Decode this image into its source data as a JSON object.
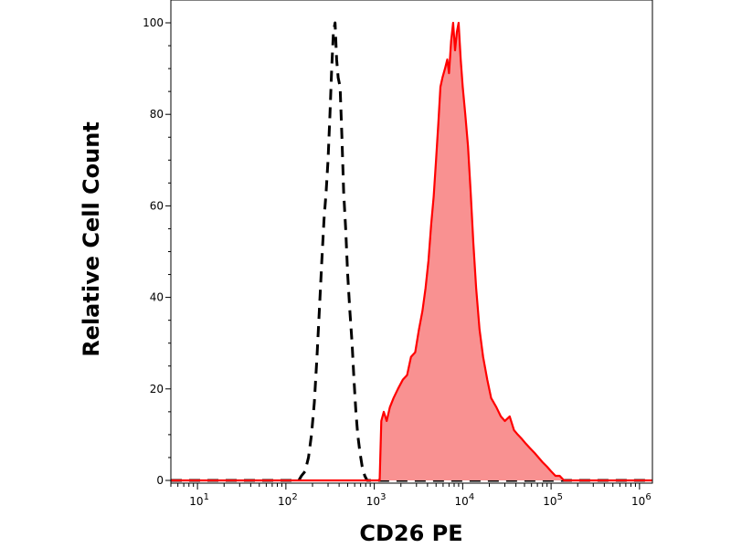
{
  "chart_data": {
    "type": "area",
    "title": "",
    "xlabel": "CD26 PE",
    "ylabel": "Relative Cell Count",
    "x_scale": "log",
    "xlim": [
      5,
      1400000
    ],
    "ylim": [
      0,
      100
    ],
    "grid": false,
    "legend": "none",
    "x_ticks": [
      {
        "value": 10,
        "base": "10",
        "exp": "1"
      },
      {
        "value": 100,
        "base": "10",
        "exp": "2"
      },
      {
        "value": 1000,
        "base": "10",
        "exp": "3"
      },
      {
        "value": 10000,
        "base": "10",
        "exp": "4"
      },
      {
        "value": 100000,
        "base": "10",
        "exp": "5"
      },
      {
        "value": 1000000,
        "base": "10",
        "exp": "6"
      }
    ],
    "y_ticks": [
      {
        "value": 0,
        "label": "0"
      },
      {
        "value": 20,
        "label": "20"
      },
      {
        "value": 40,
        "label": "40"
      },
      {
        "value": 60,
        "label": "60"
      },
      {
        "value": 80,
        "label": "80"
      },
      {
        "value": 100,
        "label": "100"
      }
    ],
    "series": [
      {
        "style": "dashed",
        "color": "#000000",
        "filled": false,
        "points": [
          [
            5,
            0
          ],
          [
            140,
            0
          ],
          [
            150,
            1
          ],
          [
            165,
            2
          ],
          [
            180,
            5
          ],
          [
            195,
            10
          ],
          [
            210,
            17
          ],
          [
            225,
            27
          ],
          [
            240,
            38
          ],
          [
            255,
            48
          ],
          [
            270,
            57
          ],
          [
            285,
            63
          ],
          [
            300,
            70
          ],
          [
            315,
            80
          ],
          [
            330,
            90
          ],
          [
            345,
            98
          ],
          [
            360,
            100
          ],
          [
            375,
            92
          ],
          [
            390,
            88
          ],
          [
            410,
            86
          ],
          [
            430,
            75
          ],
          [
            450,
            63
          ],
          [
            475,
            55
          ],
          [
            500,
            45
          ],
          [
            530,
            37
          ],
          [
            560,
            30
          ],
          [
            590,
            22
          ],
          [
            620,
            15
          ],
          [
            650,
            10
          ],
          [
            690,
            6
          ],
          [
            730,
            3
          ],
          [
            780,
            1
          ],
          [
            830,
            0
          ],
          [
            1400000,
            0
          ]
        ]
      },
      {
        "style": "solid",
        "color": "#ff0000",
        "fill": "#f99191",
        "filled": true,
        "points": [
          [
            5,
            0
          ],
          [
            1150,
            0
          ],
          [
            1200,
            13
          ],
          [
            1280,
            15
          ],
          [
            1380,
            13
          ],
          [
            1500,
            16
          ],
          [
            1650,
            18
          ],
          [
            1850,
            20
          ],
          [
            2100,
            22
          ],
          [
            2350,
            23
          ],
          [
            2600,
            27
          ],
          [
            2900,
            28
          ],
          [
            3200,
            33
          ],
          [
            3500,
            37
          ],
          [
            3800,
            42
          ],
          [
            4100,
            48
          ],
          [
            4400,
            56
          ],
          [
            4700,
            62
          ],
          [
            5000,
            70
          ],
          [
            5300,
            78
          ],
          [
            5600,
            86
          ],
          [
            5900,
            88
          ],
          [
            6300,
            90
          ],
          [
            6700,
            92
          ],
          [
            7000,
            89
          ],
          [
            7400,
            96
          ],
          [
            7800,
            100
          ],
          [
            8200,
            94
          ],
          [
            8600,
            98
          ],
          [
            9000,
            100
          ],
          [
            9500,
            92
          ],
          [
            10000,
            86
          ],
          [
            10700,
            80
          ],
          [
            11500,
            73
          ],
          [
            12300,
            63
          ],
          [
            13200,
            52
          ],
          [
            14200,
            42
          ],
          [
            15500,
            33
          ],
          [
            17000,
            27
          ],
          [
            19000,
            22
          ],
          [
            21000,
            18
          ],
          [
            24000,
            16
          ],
          [
            27000,
            14
          ],
          [
            30000,
            13
          ],
          [
            34000,
            14
          ],
          [
            38000,
            11
          ],
          [
            42000,
            10
          ],
          [
            47000,
            9
          ],
          [
            52000,
            8
          ],
          [
            58000,
            7
          ],
          [
            65000,
            6
          ],
          [
            72000,
            5
          ],
          [
            80000,
            4
          ],
          [
            90000,
            3
          ],
          [
            100000,
            2
          ],
          [
            112000,
            1
          ],
          [
            125000,
            1
          ],
          [
            140000,
            0
          ],
          [
            1400000,
            0
          ]
        ]
      }
    ]
  }
}
